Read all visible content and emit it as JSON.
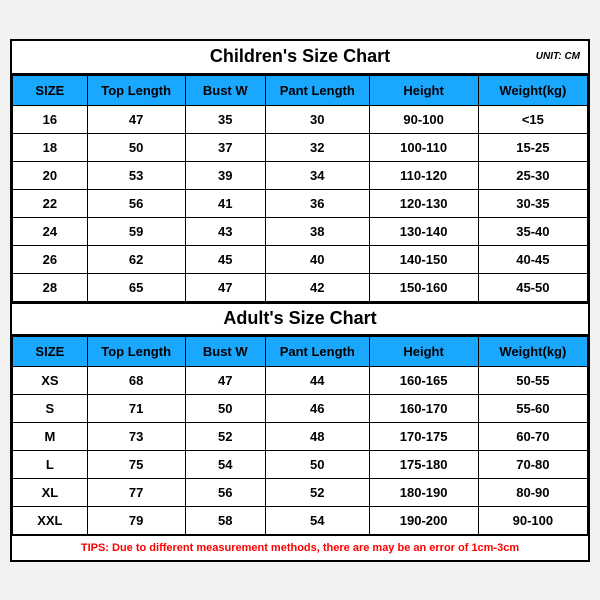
{
  "unit_label": "UNIT: CM",
  "children": {
    "title": "Children's Size Chart",
    "columns": [
      "SIZE",
      "Top Length",
      "Bust W",
      "Pant Length",
      "Height",
      "Weight(kg)"
    ],
    "rows": [
      [
        "16",
        "47",
        "35",
        "30",
        "90-100",
        "<15"
      ],
      [
        "18",
        "50",
        "37",
        "32",
        "100-110",
        "15-25"
      ],
      [
        "20",
        "53",
        "39",
        "34",
        "110-120",
        "25-30"
      ],
      [
        "22",
        "56",
        "41",
        "36",
        "120-130",
        "30-35"
      ],
      [
        "24",
        "59",
        "43",
        "38",
        "130-140",
        "35-40"
      ],
      [
        "26",
        "62",
        "45",
        "40",
        "140-150",
        "40-45"
      ],
      [
        "28",
        "65",
        "47",
        "42",
        "150-160",
        "45-50"
      ]
    ]
  },
  "adult": {
    "title": "Adult's Size Chart",
    "columns": [
      "SIZE",
      "Top Length",
      "Bust W",
      "Pant Length",
      "Height",
      "Weight(kg)"
    ],
    "rows": [
      [
        "XS",
        "68",
        "47",
        "44",
        "160-165",
        "50-55"
      ],
      [
        "S",
        "71",
        "50",
        "46",
        "160-170",
        "55-60"
      ],
      [
        "M",
        "73",
        "52",
        "48",
        "170-175",
        "60-70"
      ],
      [
        "L",
        "75",
        "54",
        "50",
        "175-180",
        "70-80"
      ],
      [
        "XL",
        "77",
        "56",
        "52",
        "180-190",
        "80-90"
      ],
      [
        "XXL",
        "79",
        "58",
        "54",
        "190-200",
        "90-100"
      ]
    ]
  },
  "tips": "TIPS: Due to different measurement methods, there are may be an error of 1cm-3cm",
  "style": {
    "header_bg": "#1aa8ff",
    "border_color": "#000000",
    "tips_color": "#ff0000",
    "body_bg": "#f2f2f2",
    "cell_bg": "#ffffff",
    "title_fontsize": 18,
    "header_fontsize": 13,
    "cell_fontsize": 13,
    "tips_fontsize": 11,
    "col_widths_pct": [
      13,
      17,
      14,
      18,
      19,
      19
    ]
  }
}
